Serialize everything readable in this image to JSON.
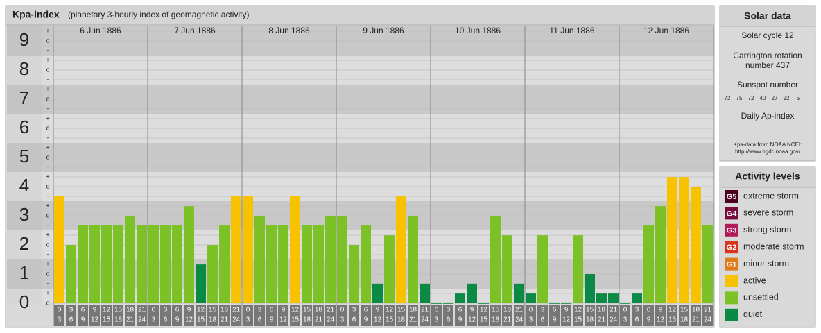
{
  "chart_data": {
    "type": "bar",
    "title": "Kpa-index",
    "subtitle": "(planetary 3-hourly index of geomagnetic activity)",
    "ylim": [
      0,
      9.5
    ],
    "yticks": [
      0,
      1,
      2,
      3,
      4,
      5,
      6,
      7,
      8,
      9
    ],
    "minor_tick_labels": [
      "o",
      "+",
      "-"
    ],
    "hour_labels": [
      [
        "0",
        "3"
      ],
      [
        "3",
        "6"
      ],
      [
        "6",
        "9"
      ],
      [
        "9",
        "12"
      ],
      [
        "12",
        "15"
      ],
      [
        "15",
        "18"
      ],
      [
        "18",
        "21"
      ],
      [
        "21",
        "24"
      ]
    ],
    "days": [
      {
        "label": "6 Jun 1886",
        "values": [
          3.67,
          2,
          2.67,
          2.67,
          2.67,
          2.67,
          3,
          2.67
        ],
        "colors": [
          "#f7c200",
          "#7cc227",
          "#7cc227",
          "#7cc227",
          "#7cc227",
          "#7cc227",
          "#7cc227",
          "#7cc227"
        ]
      },
      {
        "label": "7 Jun 1886",
        "values": [
          2.67,
          2.67,
          2.67,
          3.33,
          1.33,
          2,
          2.67,
          3.67
        ],
        "colors": [
          "#7cc227",
          "#7cc227",
          "#7cc227",
          "#7cc227",
          "#0a8a45",
          "#7cc227",
          "#7cc227",
          "#f7c200"
        ]
      },
      {
        "label": "8 Jun 1886",
        "values": [
          3.67,
          3,
          2.67,
          2.67,
          3.67,
          2.67,
          2.67,
          3
        ],
        "colors": [
          "#f7c200",
          "#7cc227",
          "#7cc227",
          "#7cc227",
          "#f7c200",
          "#7cc227",
          "#7cc227",
          "#7cc227"
        ]
      },
      {
        "label": "9 Jun 1886",
        "values": [
          3,
          2,
          2.67,
          0.67,
          2.33,
          3.67,
          3,
          0.67
        ],
        "colors": [
          "#7cc227",
          "#7cc227",
          "#7cc227",
          "#0a8a45",
          "#7cc227",
          "#f7c200",
          "#7cc227",
          "#0a8a45"
        ]
      },
      {
        "label": "10 Jun 1886",
        "values": [
          0,
          0,
          0.33,
          0.67,
          0,
          3,
          2.33,
          0.67
        ],
        "colors": [
          "#0a8a45",
          "#0a8a45",
          "#0a8a45",
          "#0a8a45",
          "#0a8a45",
          "#7cc227",
          "#7cc227",
          "#0a8a45"
        ]
      },
      {
        "label": "11 Jun 1886",
        "values": [
          0.33,
          2.33,
          0,
          0,
          2.33,
          1,
          0.33,
          0.33
        ],
        "colors": [
          "#0a8a45",
          "#7cc227",
          "#0a8a45",
          "#0a8a45",
          "#7cc227",
          "#0a8a45",
          "#0a8a45",
          "#0a8a45"
        ]
      },
      {
        "label": "12 Jun 1886",
        "values": [
          0,
          0.33,
          2.67,
          3.33,
          4.33,
          4.33,
          4,
          2.67
        ],
        "colors": [
          "#0a8a45",
          "#0a8a45",
          "#7cc227",
          "#7cc227",
          "#f7c200",
          "#f7c200",
          "#f7c200",
          "#7cc227"
        ]
      }
    ]
  },
  "solar": {
    "title": "Solar data",
    "cycle": "Solar cycle 12",
    "carrington": [
      "Carrington rotation",
      "number 437"
    ],
    "sunspot_title": "Sunspot number",
    "sunspots": [
      72,
      75,
      72,
      40,
      27,
      22,
      5
    ],
    "ap_title": "Daily Ap-index",
    "ap": [
      "–",
      "–",
      "–",
      "–",
      "–",
      "–",
      "–"
    ],
    "source": [
      "Kpa-data from NOAA NCEI:",
      "http://www.ngdc.noaa.gov/"
    ]
  },
  "activity": {
    "title": "Activity levels",
    "levels": [
      {
        "badge": "G5",
        "name": "extreme storm",
        "color": "#4d0022"
      },
      {
        "badge": "G4",
        "name": "severe storm",
        "color": "#7b0a3c"
      },
      {
        "badge": "G3",
        "name": "strong storm",
        "color": "#b31a5c"
      },
      {
        "badge": "G2",
        "name": "moderate storm",
        "color": "#d8351c"
      },
      {
        "badge": "G1",
        "name": "minor storm",
        "color": "#e07b1a"
      },
      {
        "name": "active",
        "color": "#f7c200"
      },
      {
        "name": "unsettled",
        "color": "#7cc227"
      },
      {
        "name": "quiet",
        "color": "#0a8a45"
      }
    ]
  }
}
